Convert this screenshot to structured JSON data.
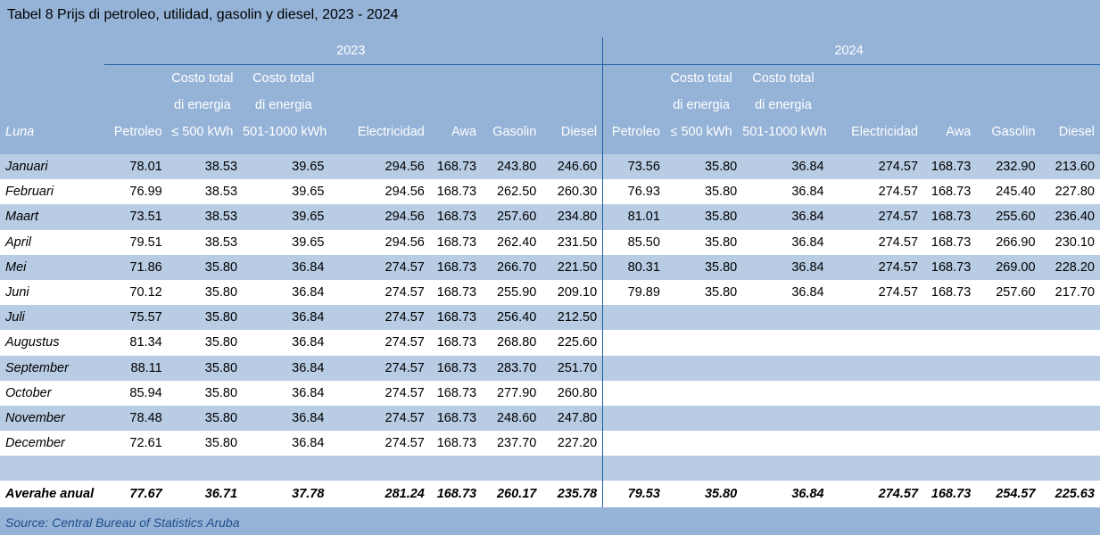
{
  "title": "Tabel 8  Prijs di petroleo, utilidad, gasolin y diesel, 2023 - 2024",
  "years": [
    "2023",
    "2024"
  ],
  "header_line1": [
    "",
    "Costo total",
    "Costo total",
    "",
    "",
    "",
    ""
  ],
  "header_line2": [
    "",
    "di energia",
    "di energia",
    "",
    "",
    "",
    ""
  ],
  "header_line3": [
    "Petroleo",
    "≤ 500 kWh",
    "501-1000 kWh",
    "Electricidad",
    "Awa",
    "Gasolin",
    "Diesel"
  ],
  "luna_label": "Luna",
  "rows": [
    {
      "month": "Januari",
      "y2023": [
        "78.01",
        "38.53",
        "39.65",
        "294.56",
        "168.73",
        "243.80",
        "246.60"
      ],
      "y2024": [
        "73.56",
        "35.80",
        "36.84",
        "274.57",
        "168.73",
        "232.90",
        "213.60"
      ]
    },
    {
      "month": "Februari",
      "y2023": [
        "76.99",
        "38.53",
        "39.65",
        "294.56",
        "168.73",
        "262.50",
        "260.30"
      ],
      "y2024": [
        "76.93",
        "35.80",
        "36.84",
        "274.57",
        "168.73",
        "245.40",
        "227.80"
      ]
    },
    {
      "month": "Maart",
      "y2023": [
        "73.51",
        "38.53",
        "39.65",
        "294.56",
        "168.73",
        "257.60",
        "234.80"
      ],
      "y2024": [
        "81.01",
        "35.80",
        "36.84",
        "274.57",
        "168.73",
        "255.60",
        "236.40"
      ]
    },
    {
      "month": "April",
      "y2023": [
        "79.51",
        "38.53",
        "39.65",
        "294.56",
        "168.73",
        "262.40",
        "231.50"
      ],
      "y2024": [
        "85.50",
        "35.80",
        "36.84",
        "274.57",
        "168.73",
        "266.90",
        "230.10"
      ]
    },
    {
      "month": "Mei",
      "y2023": [
        "71.86",
        "35.80",
        "36.84",
        "274.57",
        "168.73",
        "266.70",
        "221.50"
      ],
      "y2024": [
        "80.31",
        "35.80",
        "36.84",
        "274.57",
        "168.73",
        "269.00",
        "228.20"
      ]
    },
    {
      "month": "Juni",
      "y2023": [
        "70.12",
        "35.80",
        "36.84",
        "274.57",
        "168.73",
        "255.90",
        "209.10"
      ],
      "y2024": [
        "79.89",
        "35.80",
        "36.84",
        "274.57",
        "168.73",
        "257.60",
        "217.70"
      ]
    },
    {
      "month": "Juli",
      "y2023": [
        "75.57",
        "35.80",
        "36.84",
        "274.57",
        "168.73",
        "256.40",
        "212.50"
      ],
      "y2024": [
        "",
        "",
        "",
        "",
        "",
        "",
        ""
      ]
    },
    {
      "month": "Augustus",
      "y2023": [
        "81.34",
        "35.80",
        "36.84",
        "274.57",
        "168.73",
        "268.80",
        "225.60"
      ],
      "y2024": [
        "",
        "",
        "",
        "",
        "",
        "",
        ""
      ]
    },
    {
      "month": "September",
      "y2023": [
        "88.11",
        "35.80",
        "36.84",
        "274.57",
        "168.73",
        "283.70",
        "251.70"
      ],
      "y2024": [
        "",
        "",
        "",
        "",
        "",
        "",
        ""
      ]
    },
    {
      "month": "October",
      "y2023": [
        "85.94",
        "35.80",
        "36.84",
        "274.57",
        "168.73",
        "277.90",
        "260.80"
      ],
      "y2024": [
        "",
        "",
        "",
        "",
        "",
        "",
        ""
      ]
    },
    {
      "month": "November",
      "y2023": [
        "78.48",
        "35.80",
        "36.84",
        "274.57",
        "168.73",
        "248.60",
        "247.80"
      ],
      "y2024": [
        "",
        "",
        "",
        "",
        "",
        "",
        ""
      ]
    },
    {
      "month": "December",
      "y2023": [
        "72.61",
        "35.80",
        "36.84",
        "274.57",
        "168.73",
        "237.70",
        "227.20"
      ],
      "y2024": [
        "",
        "",
        "",
        "",
        "",
        "",
        ""
      ]
    }
  ],
  "average": {
    "label": "Averahe anual",
    "y2023": [
      "77.67",
      "36.71",
      "37.78",
      "281.24",
      "168.73",
      "260.17",
      "235.78"
    ],
    "y2024": [
      "79.53",
      "35.80",
      "36.84",
      "274.57",
      "168.73",
      "254.57",
      "225.63"
    ]
  },
  "source": "Source: Central Bureau of Statistics Aruba"
}
